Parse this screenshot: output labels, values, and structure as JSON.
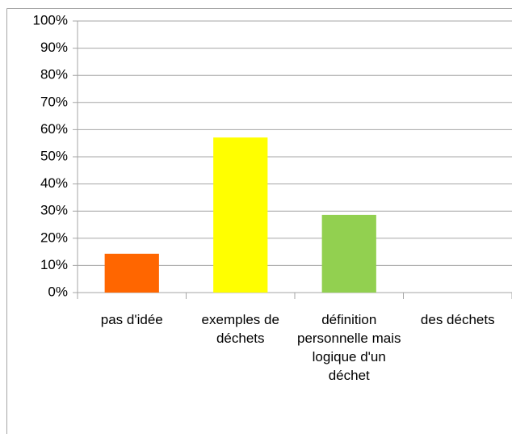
{
  "chart_data": {
    "type": "bar",
    "categories": [
      "pas d'idée",
      "exemples de déchets",
      "définition personnelle mais logique d'un déchet",
      "des déchets"
    ],
    "values": [
      14.3,
      57.1,
      28.6,
      0
    ],
    "colors": [
      "#ff6600",
      "#ffff00",
      "#92d050",
      "#4472c4"
    ],
    "ylim": [
      0,
      100
    ],
    "yticks": [
      {
        "value": 0,
        "label": "0%"
      },
      {
        "value": 10,
        "label": "10%"
      },
      {
        "value": 20,
        "label": "20%"
      },
      {
        "value": 30,
        "label": "30%"
      },
      {
        "value": 40,
        "label": "40%"
      },
      {
        "value": 50,
        "label": "50%"
      },
      {
        "value": 60,
        "label": "60%"
      },
      {
        "value": 70,
        "label": "70%"
      },
      {
        "value": 80,
        "label": "80%"
      },
      {
        "value": 90,
        "label": "90%"
      },
      {
        "value": 100,
        "label": "100%"
      }
    ],
    "grid": true
  }
}
